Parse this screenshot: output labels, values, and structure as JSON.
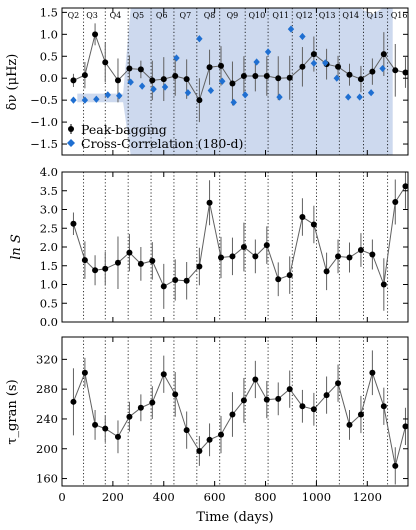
{
  "chart_data": [
    {
      "type": "line",
      "ylabel": "δν (μHz)",
      "ylim": [
        -1.75,
        1.6
      ],
      "yticks": [
        -1.5,
        -1.0,
        -0.5,
        0.0,
        0.5,
        1.0,
        1.5
      ],
      "ytick_labels": [
        "−1.5",
        "−1.0",
        "−0.5",
        "0.0",
        "0.5",
        "1.0",
        "1.5"
      ],
      "xlim": [
        0,
        1360
      ],
      "xticks": [
        0,
        200,
        400,
        600,
        800,
        1000,
        1200
      ],
      "quarters": [
        {
          "label": "Q2",
          "x": 45
        },
        {
          "label": "Q3",
          "x": 118
        },
        {
          "label": "Q4",
          "x": 210
        },
        {
          "label": "Q5",
          "x": 300
        },
        {
          "label": "Q6",
          "x": 392
        },
        {
          "label": "Q7",
          "x": 485
        },
        {
          "label": "Q8",
          "x": 580
        },
        {
          "label": "Q9",
          "x": 670
        },
        {
          "label": "Q10",
          "x": 766
        },
        {
          "label": "Q11",
          "x": 860
        },
        {
          "label": "Q12",
          "x": 952
        },
        {
          "label": "Q13",
          "x": 1042
        },
        {
          "label": "Q14",
          "x": 1135
        },
        {
          "label": "Q15",
          "x": 1230
        },
        {
          "label": "Q16",
          "x": 1325
        }
      ],
      "quarter_boundaries": [
        85,
        170,
        260,
        350,
        440,
        530,
        620,
        720,
        810,
        905,
        1000,
        1090,
        1185,
        1280
      ],
      "band": {
        "x": [
          60,
          150,
          240,
          270,
          1170,
          1220,
          1260,
          1300
        ],
        "top": [
          -0.35,
          -0.35,
          -0.35,
          1.6,
          1.6,
          1.45,
          1.6,
          1.6
        ],
        "bottom": [
          -0.55,
          -0.55,
          -0.55,
          -1.75,
          -1.75,
          -1.75,
          -1.75,
          -1.75
        ]
      },
      "series": [
        {
          "name": "Peak-bagging",
          "x": [
            45,
            90,
            130,
            170,
            220,
            265,
            310,
            355,
            400,
            445,
            490,
            540,
            580,
            625,
            670,
            715,
            760,
            805,
            850,
            895,
            945,
            990,
            1040,
            1085,
            1130,
            1175,
            1220,
            1265,
            1310,
            1350
          ],
          "y": [
            -0.05,
            0.07,
            1.0,
            0.36,
            -0.05,
            0.22,
            0.2,
            -0.05,
            -0.02,
            0.05,
            -0.02,
            -0.5,
            0.25,
            0.28,
            -0.12,
            0.05,
            0.05,
            0.05,
            0.0,
            0.01,
            0.26,
            0.55,
            0.32,
            0.26,
            0.08,
            -0.02,
            0.15,
            0.55,
            0.18,
            0.13
          ],
          "err": [
            0.15,
            0.3,
            0.25,
            0.45,
            0.5,
            0.3,
            0.2,
            0.45,
            0.5,
            0.45,
            0.45,
            0.5,
            0.4,
            0.45,
            0.5,
            0.45,
            0.35,
            0.45,
            0.5,
            0.5,
            0.45,
            0.4,
            0.35,
            0.25,
            0.25,
            0.3,
            0.3,
            0.5,
            0.6,
            0.35
          ]
        },
        {
          "name": "Cross-Correlation (180-d)",
          "x": [
            45,
            90,
            135,
            180,
            225,
            270,
            315,
            360,
            405,
            450,
            495,
            540,
            585,
            630,
            675,
            720,
            765,
            810,
            855,
            900,
            945,
            990,
            1035,
            1080,
            1125,
            1170,
            1215,
            1260
          ],
          "y": [
            -0.5,
            -0.5,
            -0.48,
            -0.38,
            -0.4,
            -0.09,
            -0.18,
            -0.25,
            -0.2,
            0.46,
            -0.33,
            0.9,
            -0.28,
            -0.07,
            -0.55,
            -0.38,
            0.37,
            0.6,
            -0.43,
            1.12,
            0.95,
            0.34,
            0.35,
            0.0,
            -0.43,
            -0.43,
            -0.33,
            0.22
          ]
        }
      ],
      "legend": {
        "placement": "bottom-left",
        "entries": [
          "Peak-bagging",
          "Cross-Correlation (180-d)"
        ]
      },
      "colors": {
        "peak": "#000000",
        "line": "#606060",
        "cc": "#1f6fd1",
        "band": "#cdd9ee"
      }
    },
    {
      "type": "line",
      "ylabel": "ln S",
      "ylim": [
        0,
        4
      ],
      "yticks": [
        0,
        0.5,
        1,
        1.5,
        2,
        2.5,
        3,
        3.5,
        4
      ],
      "ytick_labels": [
        "0.0",
        "0.5",
        "1.0",
        "1.5",
        "2.0",
        "2.5",
        "3.0",
        "3.5",
        "4.0"
      ],
      "xlim": [
        0,
        1360
      ],
      "series": [
        {
          "name": "ln S",
          "x": [
            45,
            90,
            130,
            170,
            220,
            265,
            310,
            355,
            400,
            445,
            490,
            540,
            580,
            625,
            670,
            715,
            760,
            805,
            850,
            895,
            945,
            990,
            1040,
            1085,
            1130,
            1175,
            1220,
            1265,
            1310,
            1350
          ],
          "y": [
            2.62,
            1.65,
            1.38,
            1.42,
            1.58,
            1.85,
            1.55,
            1.63,
            0.95,
            1.12,
            1.1,
            1.48,
            3.18,
            1.72,
            1.75,
            2.0,
            1.75,
            2.05,
            1.14,
            1.25,
            2.8,
            2.6,
            1.35,
            1.75,
            1.72,
            1.92,
            1.8,
            1.0,
            3.2,
            3.62
          ],
          "err": [
            0.3,
            0.5,
            0.4,
            0.45,
            0.7,
            0.5,
            0.45,
            0.5,
            0.6,
            0.55,
            0.5,
            0.5,
            0.6,
            0.55,
            0.5,
            0.65,
            0.45,
            0.5,
            0.45,
            0.5,
            0.5,
            0.5,
            0.5,
            0.45,
            0.4,
            0.45,
            0.4,
            0.7,
            0.6,
            0.6
          ]
        }
      ]
    },
    {
      "type": "line",
      "xlabel": "Time (days)",
      "ylabel": "τ_gran (s)",
      "ylim": [
        150,
        350
      ],
      "yticks": [
        160,
        200,
        240,
        280,
        320
      ],
      "ytick_labels": [
        "160",
        "200",
        "240",
        "280",
        "320"
      ],
      "xlim": [
        0,
        1360
      ],
      "xticks": [
        0,
        200,
        400,
        600,
        800,
        1000,
        1200
      ],
      "xtick_labels": [
        "0",
        "200",
        "400",
        "600",
        "800",
        "1000",
        "1200"
      ],
      "series": [
        {
          "name": "τ_gran",
          "x": [
            45,
            90,
            130,
            170,
            220,
            265,
            310,
            355,
            400,
            445,
            490,
            540,
            580,
            625,
            670,
            715,
            760,
            805,
            850,
            895,
            945,
            990,
            1040,
            1085,
            1130,
            1175,
            1220,
            1265,
            1310,
            1350
          ],
          "y": [
            263,
            302,
            232,
            227,
            216,
            243,
            255,
            262,
            300,
            273,
            225,
            197,
            212,
            219,
            246,
            265,
            293,
            266,
            267,
            280,
            257,
            253,
            272,
            288,
            232,
            246,
            302,
            257,
            177,
            230
          ],
          "err": [
            45,
            20,
            20,
            18,
            22,
            20,
            18,
            22,
            25,
            30,
            25,
            20,
            22,
            25,
            30,
            30,
            25,
            25,
            22,
            25,
            22,
            22,
            25,
            25,
            20,
            25,
            30,
            25,
            25,
            25
          ]
        }
      ]
    }
  ]
}
